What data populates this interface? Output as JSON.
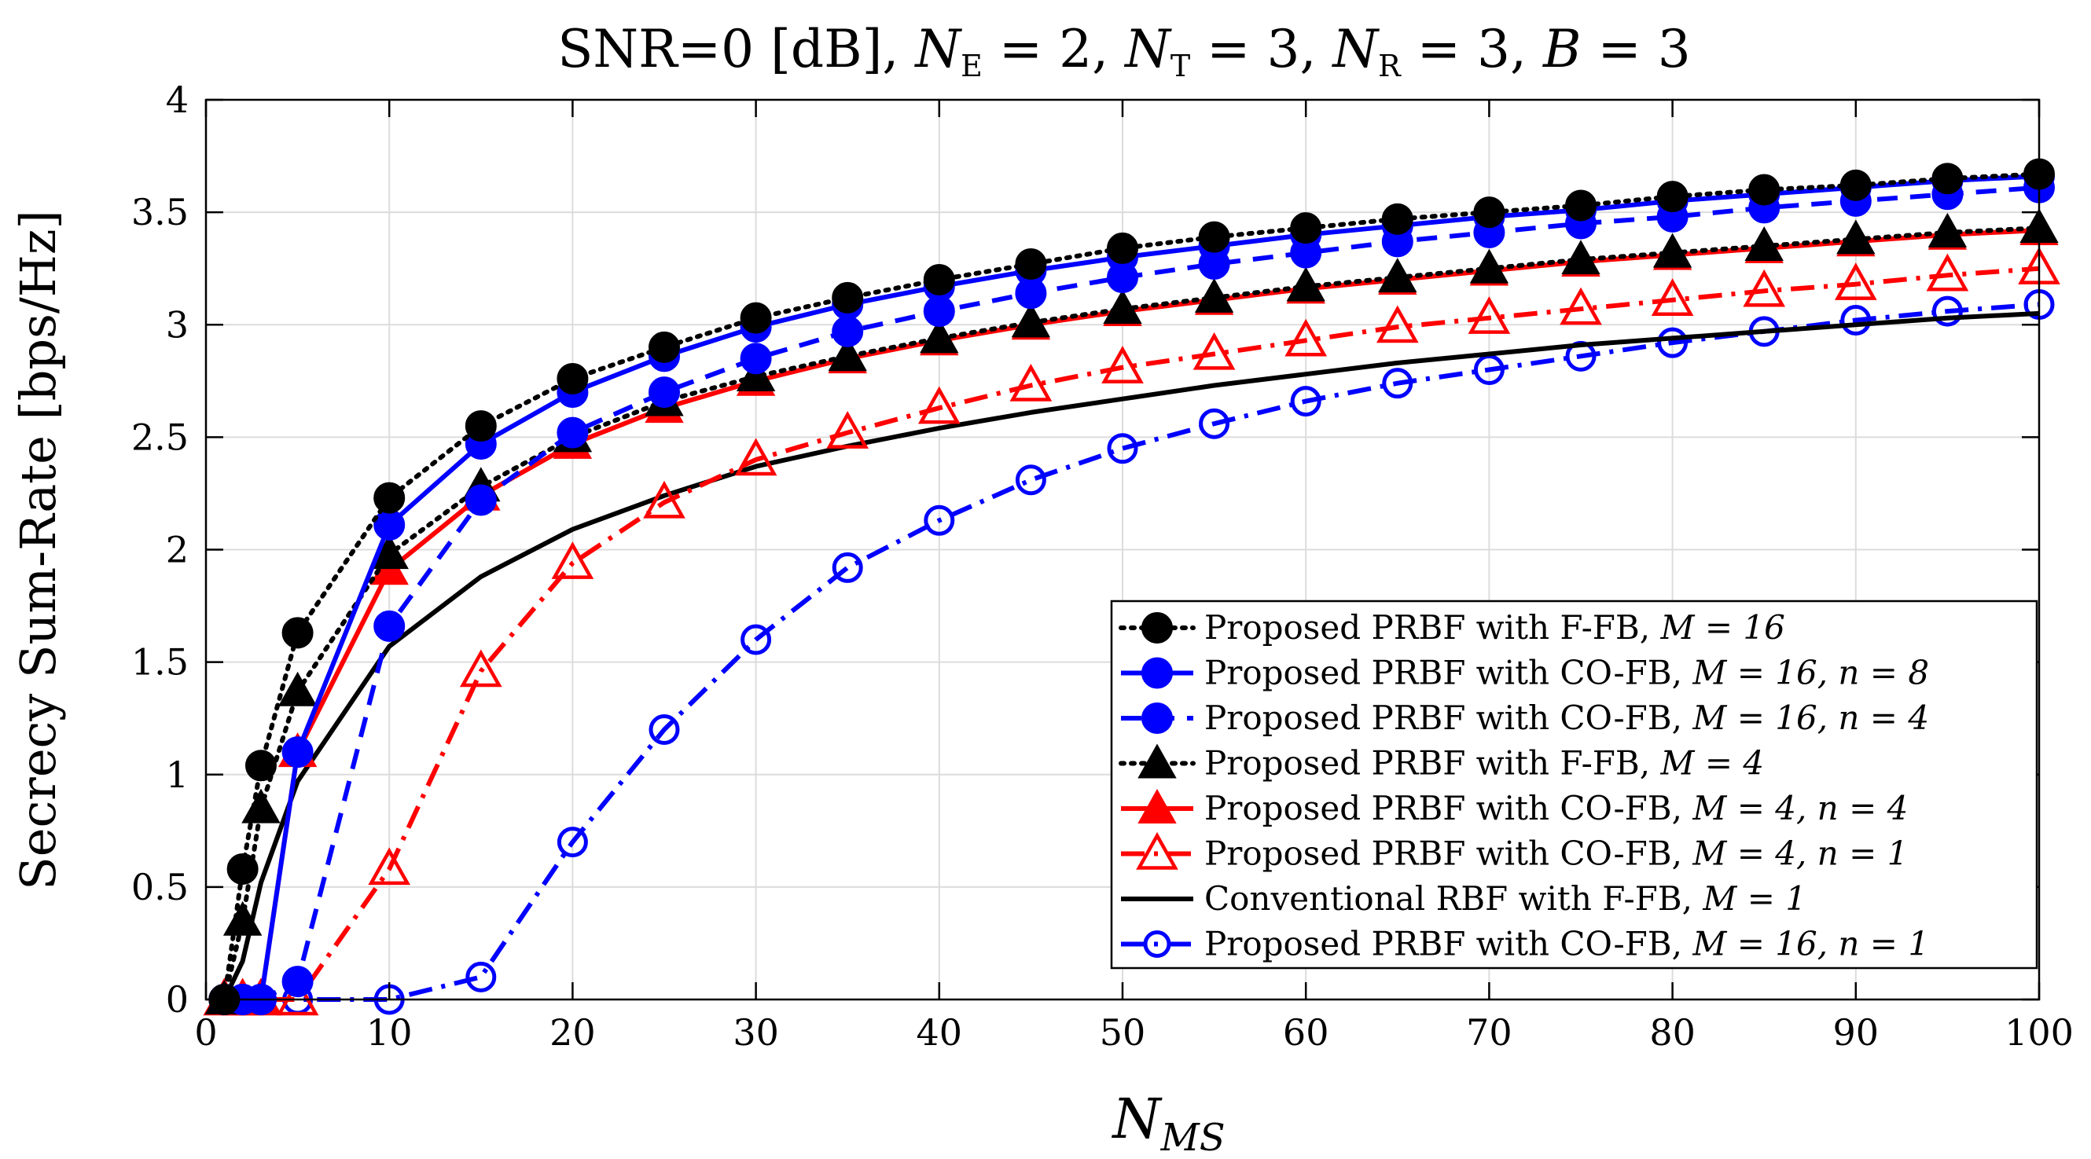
{
  "chart_data": {
    "type": "line",
    "title": "SNR=0 [dB], N_E = 2, N_T = 3, N_R = 3, B = 3",
    "title_parts": {
      "prefix": "SNR=0 [dB], ",
      "ne_sym": "N",
      "ne_sub": "E",
      "ne_val": " = 2, ",
      "nt_sym": "N",
      "nt_sub": "T",
      "nt_val": " = 3, ",
      "nr_sym": "N",
      "nr_sub": "R",
      "nr_val": " = 3, ",
      "b_sym": "B",
      "b_val": " = 3"
    },
    "xlabel": "N_MS",
    "xlabel_parts": {
      "sym": "N",
      "sub": "MS"
    },
    "ylabel": "Secrecy Sum-Rate [bps/Hz]",
    "xlim": [
      0,
      100
    ],
    "ylim": [
      0,
      4
    ],
    "xticks": [
      0,
      10,
      20,
      30,
      40,
      50,
      60,
      70,
      80,
      90,
      100
    ],
    "yticks": [
      0,
      0.5,
      1,
      1.5,
      2,
      2.5,
      3,
      3.5,
      4
    ],
    "ytick_labels": [
      "0",
      "0.5",
      "1",
      "1.5",
      "2",
      "2.5",
      "3",
      "3.5",
      "4"
    ],
    "grid": true,
    "legend_position": "bottom-right",
    "series": [
      {
        "name": "Proposed PRBF with F-FB, M = 16",
        "legend_text": "Proposed PRBF with F-FB, ",
        "legend_math": "M = 16",
        "color": "#000000",
        "line": "dotted",
        "marker": "circle",
        "filled": true,
        "x": [
          1,
          2,
          3,
          5,
          10,
          15,
          20,
          25,
          30,
          35,
          40,
          45,
          50,
          55,
          60,
          65,
          70,
          75,
          80,
          85,
          90,
          95,
          100
        ],
        "y": [
          0.0,
          0.58,
          1.04,
          1.63,
          2.23,
          2.55,
          2.76,
          2.9,
          3.03,
          3.12,
          3.2,
          3.27,
          3.34,
          3.39,
          3.43,
          3.47,
          3.5,
          3.53,
          3.57,
          3.6,
          3.62,
          3.65,
          3.67
        ]
      },
      {
        "name": "Proposed PRBF with CO-FB, M = 16, n = 8",
        "legend_text": "Proposed PRBF with CO-FB, ",
        "legend_math": "M = 16, n = 8",
        "color": "#0000ff",
        "line": "solid",
        "marker": "circle",
        "filled": true,
        "x": [
          1,
          2,
          3,
          5,
          10,
          15,
          20,
          25,
          30,
          35,
          40,
          45,
          50,
          55,
          60,
          65,
          70,
          75,
          80,
          85,
          90,
          95,
          100
        ],
        "y": [
          0.0,
          0.0,
          0.0,
          1.1,
          2.11,
          2.47,
          2.7,
          2.86,
          2.99,
          3.09,
          3.17,
          3.24,
          3.3,
          3.35,
          3.4,
          3.44,
          3.48,
          3.51,
          3.55,
          3.58,
          3.61,
          3.64,
          3.66
        ]
      },
      {
        "name": "Proposed PRBF with CO-FB, M = 16, n = 4",
        "legend_text": "Proposed PRBF with CO-FB, ",
        "legend_math": "M = 16, n = 4",
        "color": "#0000ff",
        "line": "dashed",
        "marker": "circle",
        "filled": true,
        "x": [
          1,
          2,
          3,
          5,
          10,
          15,
          20,
          25,
          30,
          35,
          40,
          45,
          50,
          55,
          60,
          65,
          70,
          75,
          80,
          85,
          90,
          95,
          100
        ],
        "y": [
          0.0,
          0.0,
          0.0,
          0.08,
          1.66,
          2.22,
          2.52,
          2.7,
          2.85,
          2.97,
          3.06,
          3.14,
          3.21,
          3.27,
          3.32,
          3.37,
          3.41,
          3.45,
          3.48,
          3.52,
          3.55,
          3.58,
          3.61
        ]
      },
      {
        "name": "Proposed PRBF with F-FB, M = 4",
        "legend_text": "Proposed PRBF with F-FB, ",
        "legend_math": "M = 4",
        "color": "#000000",
        "line": "dotted",
        "marker": "triangle",
        "filled": true,
        "x": [
          1,
          2,
          3,
          5,
          10,
          15,
          20,
          25,
          30,
          35,
          40,
          45,
          50,
          55,
          60,
          65,
          70,
          75,
          80,
          85,
          90,
          95,
          100
        ],
        "y": [
          0.0,
          0.35,
          0.85,
          1.37,
          1.98,
          2.28,
          2.5,
          2.66,
          2.77,
          2.86,
          2.94,
          3.01,
          3.07,
          3.12,
          3.17,
          3.21,
          3.25,
          3.29,
          3.32,
          3.35,
          3.38,
          3.41,
          3.43
        ]
      },
      {
        "name": "Proposed PRBF with CO-FB, M = 4, n = 4",
        "legend_text": "Proposed PRBF with CO-FB, ",
        "legend_math": "M = 4, n = 4",
        "color": "#ff0000",
        "line": "solid",
        "marker": "triangle",
        "filled": true,
        "x": [
          1,
          2,
          3,
          5,
          10,
          15,
          20,
          25,
          30,
          35,
          40,
          45,
          50,
          55,
          60,
          65,
          70,
          75,
          80,
          85,
          90,
          95,
          100
        ],
        "y": [
          0.0,
          0.0,
          0.0,
          1.1,
          1.91,
          2.24,
          2.47,
          2.63,
          2.75,
          2.85,
          2.93,
          3.0,
          3.06,
          3.11,
          3.16,
          3.2,
          3.24,
          3.28,
          3.31,
          3.34,
          3.37,
          3.4,
          3.42
        ]
      },
      {
        "name": "Proposed PRBF with CO-FB, M = 4, n = 1",
        "legend_text": "Proposed PRBF with CO-FB, ",
        "legend_math": "M = 4, n = 1",
        "color": "#ff0000",
        "line": "dashdot",
        "marker": "triangle",
        "filled": false,
        "x": [
          1,
          2,
          3,
          5,
          10,
          15,
          20,
          25,
          30,
          35,
          40,
          45,
          50,
          55,
          60,
          65,
          70,
          75,
          80,
          85,
          90,
          95,
          100
        ],
        "y": [
          0.0,
          0.0,
          0.0,
          0.0,
          0.58,
          1.46,
          1.94,
          2.21,
          2.4,
          2.52,
          2.63,
          2.73,
          2.81,
          2.87,
          2.93,
          2.99,
          3.03,
          3.07,
          3.11,
          3.15,
          3.18,
          3.22,
          3.25
        ]
      },
      {
        "name": "Conventional RBF with F-FB, M = 1",
        "legend_text": "Conventional RBF with F-FB, ",
        "legend_math": "M = 1",
        "color": "#000000",
        "line": "solid",
        "marker": "none",
        "filled": false,
        "x": [
          1,
          2,
          3,
          5,
          10,
          15,
          20,
          25,
          30,
          35,
          40,
          45,
          50,
          55,
          60,
          65,
          70,
          75,
          80,
          85,
          90,
          95,
          100
        ],
        "y": [
          0.0,
          0.17,
          0.52,
          0.97,
          1.57,
          1.88,
          2.09,
          2.24,
          2.37,
          2.46,
          2.54,
          2.61,
          2.67,
          2.73,
          2.78,
          2.83,
          2.87,
          2.91,
          2.94,
          2.97,
          3.0,
          3.03,
          3.05
        ]
      },
      {
        "name": "Proposed PRBF with CO-FB, M = 16, n = 1",
        "legend_text": "Proposed PRBF with CO-FB, ",
        "legend_math": "M = 16, n = 1",
        "color": "#0000ff",
        "line": "dashdot",
        "marker": "circle",
        "filled": false,
        "x": [
          1,
          2,
          3,
          5,
          10,
          15,
          20,
          25,
          30,
          35,
          40,
          45,
          50,
          55,
          60,
          65,
          70,
          75,
          80,
          85,
          90,
          95,
          100
        ],
        "y": [
          0.0,
          0.0,
          0.0,
          0.0,
          0.0,
          0.1,
          0.7,
          1.2,
          1.6,
          1.92,
          2.13,
          2.31,
          2.45,
          2.56,
          2.66,
          2.74,
          2.8,
          2.86,
          2.92,
          2.97,
          3.02,
          3.06,
          3.09
        ]
      }
    ]
  }
}
